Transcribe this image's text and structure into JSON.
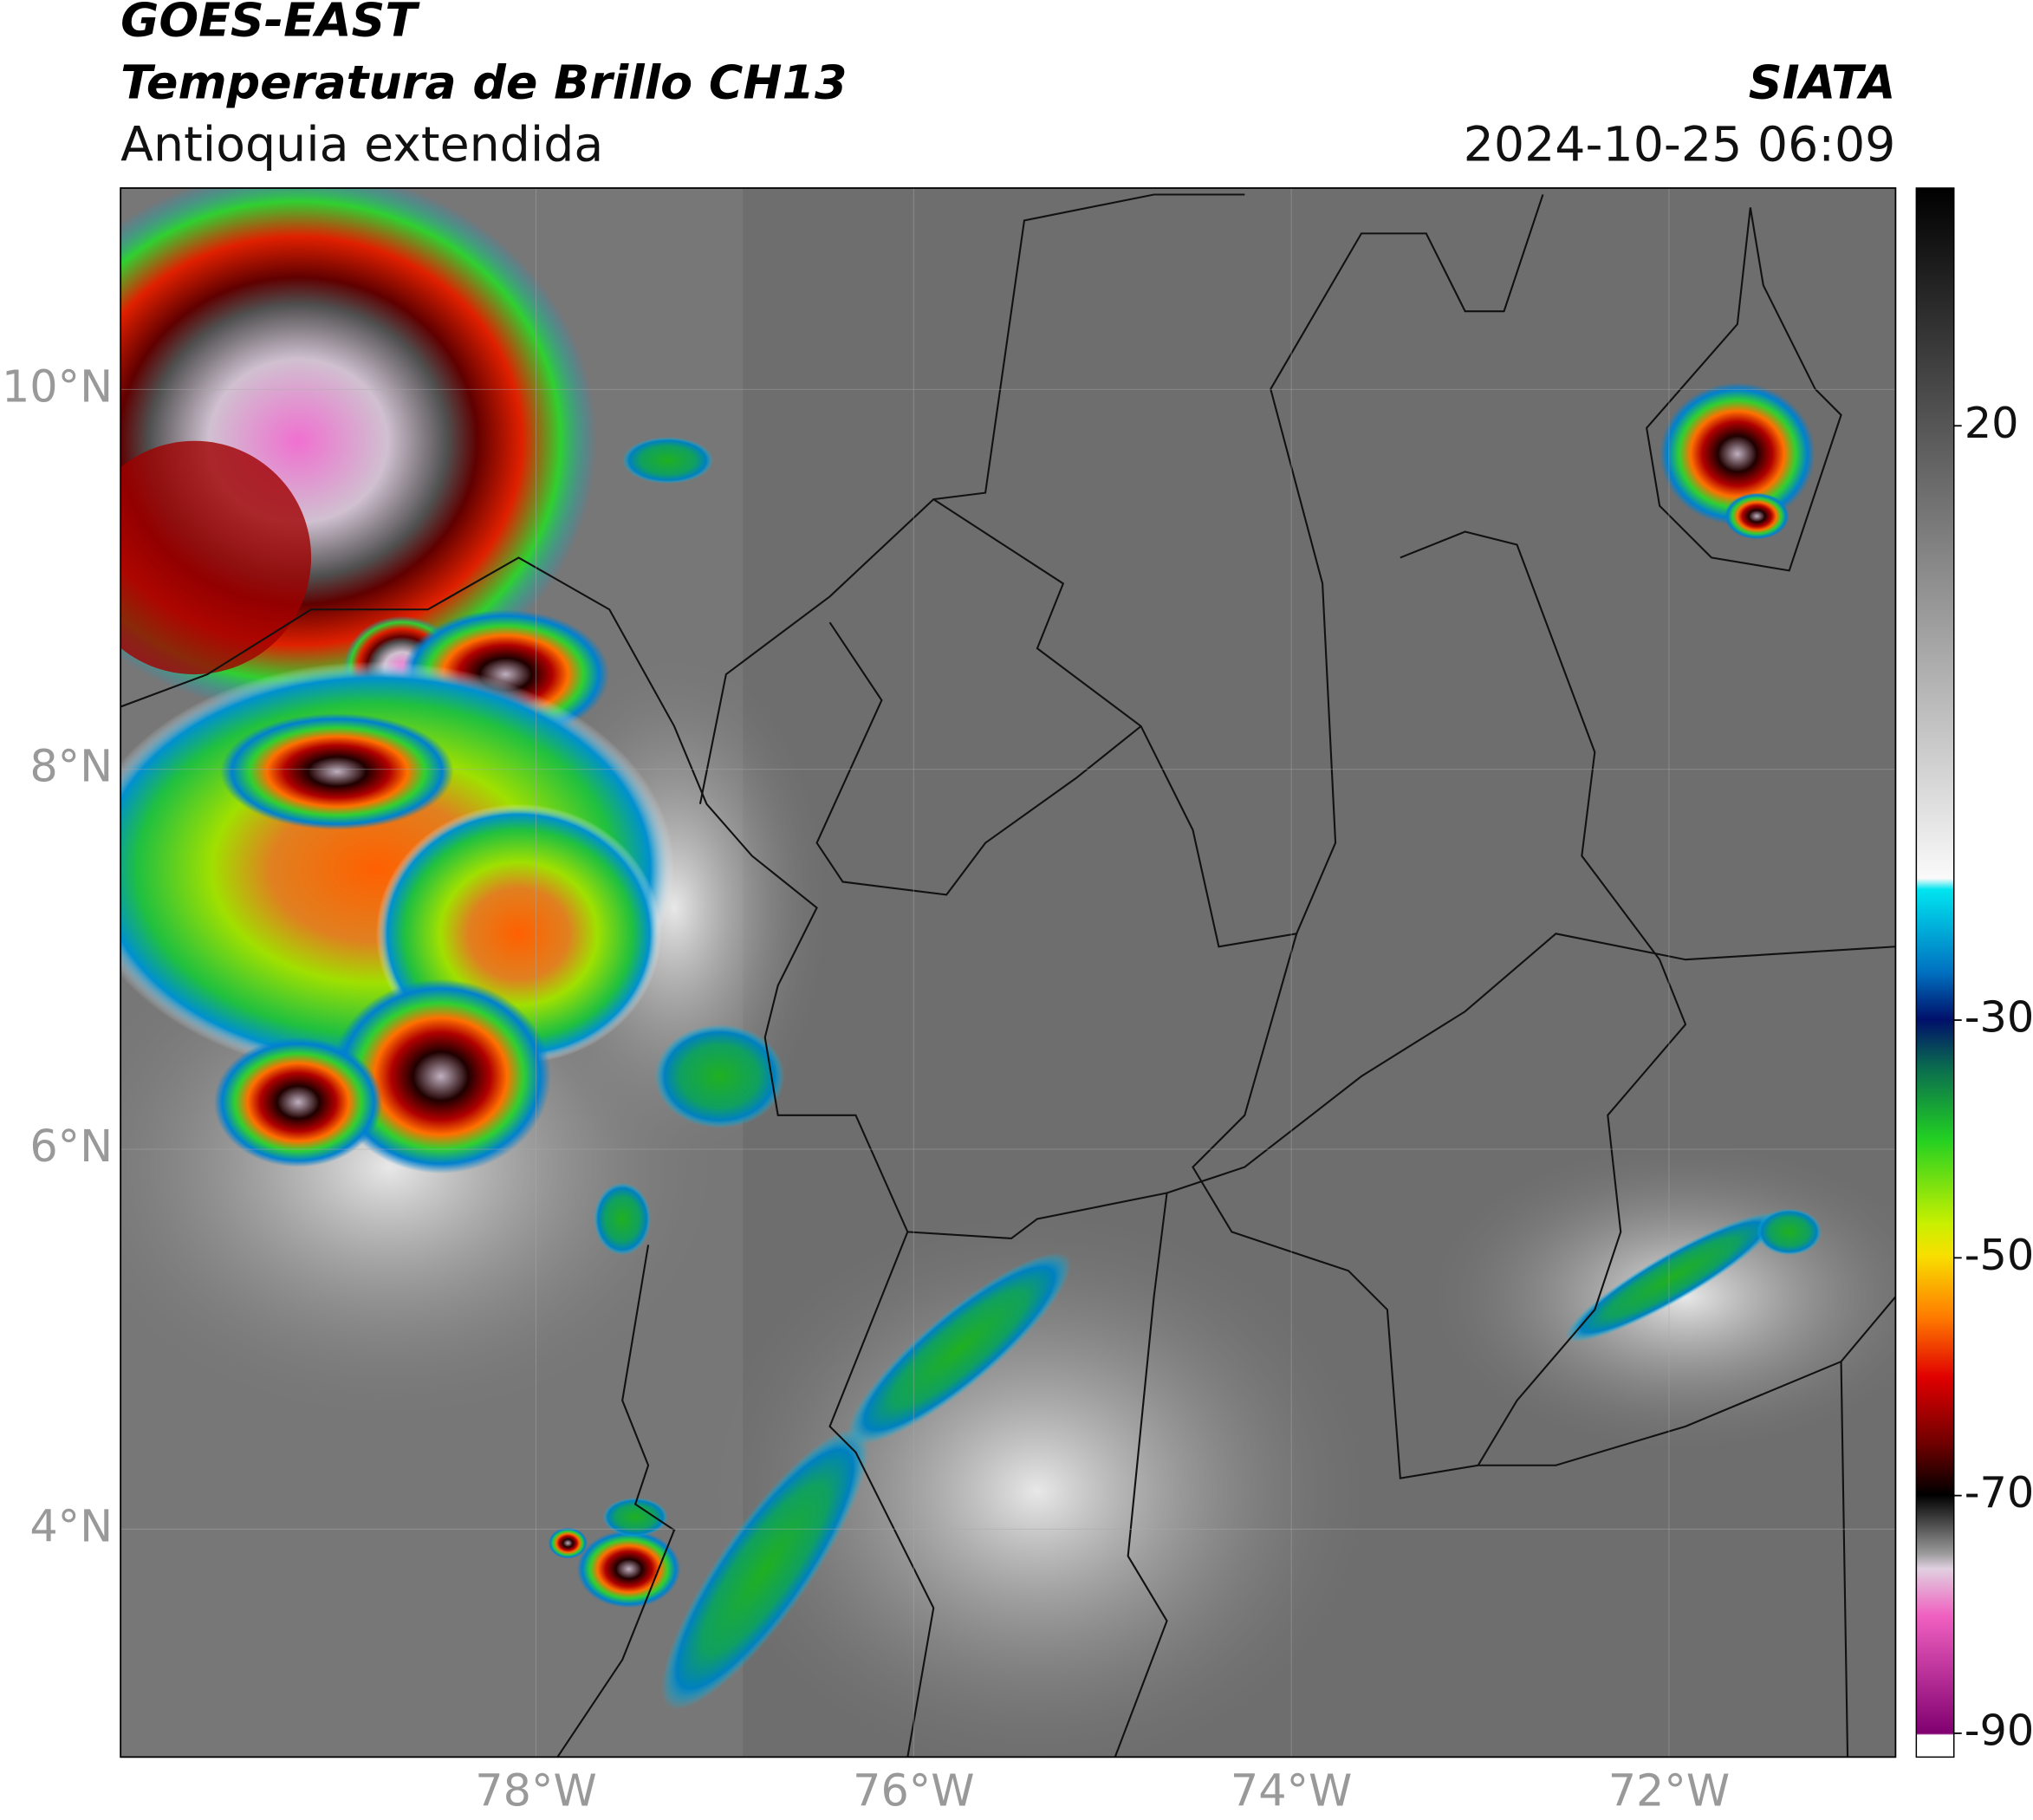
{
  "header": {
    "satellite": "GOES-EAST",
    "product": "Temperatura de Brillo CH13",
    "region": "Antioquia extendida",
    "source": "SIATA",
    "datetime": "2024-10-25 06:09"
  },
  "map": {
    "lon_range": [
      -80.2,
      -70.8
    ],
    "lat_range": [
      2.8,
      11.06
    ],
    "lon_ticks": [
      {
        "value": -78,
        "label": "78°W"
      },
      {
        "value": -76,
        "label": "76°W"
      },
      {
        "value": -74,
        "label": "74°W"
      },
      {
        "value": -72,
        "label": "72°W"
      }
    ],
    "lat_ticks": [
      {
        "value": 4,
        "label": "4°N"
      },
      {
        "value": 6,
        "label": "6°N"
      },
      {
        "value": 8,
        "label": "8°N"
      },
      {
        "value": 10,
        "label": "10°N"
      }
    ]
  },
  "colorbar": {
    "range": [
      -92,
      40
    ],
    "ticks": [
      20,
      -30,
      -50,
      -70,
      -90
    ]
  }
}
